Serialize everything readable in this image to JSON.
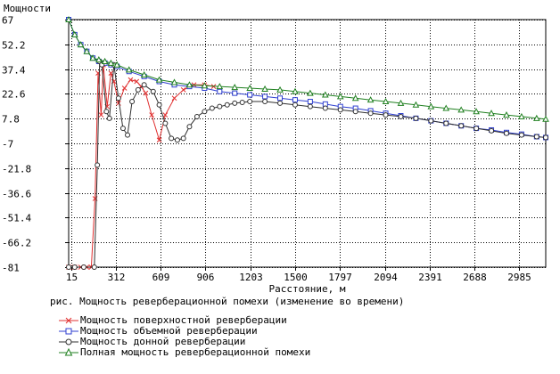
{
  "chart_data": {
    "type": "line",
    "ylabel": "Мощности",
    "xlabel": "Расстояние, м",
    "caption": "рис. Мощность реверберационной помехи (изменение во времени)",
    "xlim": [
      0,
      3160
    ],
    "ylim": [
      -81,
      67
    ],
    "x_ticks": [
      15,
      312,
      609,
      906,
      1203,
      1500,
      1797,
      2094,
      2391,
      2688,
      2985
    ],
    "y_ticks": [
      67,
      52.2,
      37.4,
      22.6,
      7.8,
      -7,
      -21.8,
      -36.6,
      -51.4,
      -66.2,
      -81
    ],
    "grid": true,
    "series": [
      {
        "name": "Мощность поверхностной реверберации",
        "color": "#e03030",
        "marker": "x",
        "x": [
          0,
          40,
          80,
          120,
          150,
          175,
          195,
          215,
          230,
          255,
          280,
          300,
          330,
          370,
          410,
          450,
          480,
          510,
          550,
          600,
          640,
          700,
          760,
          830,
          900,
          960
        ],
        "y": [
          -81,
          -81,
          -81,
          -81,
          -81,
          -40,
          35,
          10,
          40,
          15,
          35,
          30,
          17,
          26,
          31,
          30,
          27,
          23,
          10,
          -5,
          10,
          20,
          25,
          28,
          28,
          27
        ]
      },
      {
        "name": "Мощность объемной реверберации",
        "color": "#3040d0",
        "marker": "square",
        "x": [
          0,
          40,
          80,
          120,
          160,
          200,
          240,
          280,
          320,
          400,
          500,
          600,
          700,
          800,
          900,
          1000,
          1100,
          1200,
          1300,
          1400,
          1500,
          1600,
          1700,
          1800,
          1900,
          2000,
          2100,
          2200,
          2300,
          2400,
          2500,
          2600,
          2700,
          2800,
          2900,
          3000,
          3100,
          3160
        ],
        "y": [
          67,
          58,
          52,
          48,
          44,
          42,
          41,
          40,
          39,
          36,
          33,
          30,
          28,
          27,
          26,
          24,
          23,
          22,
          21,
          20,
          19,
          18,
          16.5,
          15,
          14,
          12.5,
          11,
          9.5,
          8,
          6.5,
          5,
          3.5,
          2,
          1,
          -0.5,
          -1.5,
          -3,
          -3.5
        ]
      },
      {
        "name": "Мощность донной реверберации",
        "color": "#303030",
        "marker": "circle",
        "x": [
          0,
          40,
          100,
          170,
          190,
          205,
          220,
          250,
          270,
          300,
          330,
          360,
          390,
          420,
          460,
          500,
          560,
          600,
          640,
          680,
          720,
          760,
          800,
          850,
          900,
          950,
          1000,
          1050,
          1100,
          1150,
          1200,
          1300,
          1400,
          1500,
          1600,
          1700,
          1800,
          1900,
          2000,
          2100,
          2200,
          2300,
          2400,
          2500,
          2600,
          2700,
          2800,
          2900,
          3000,
          3100,
          3160
        ],
        "y": [
          -81,
          -81,
          -81,
          -81,
          -20,
          42,
          40,
          12,
          8,
          40,
          20,
          2,
          -2,
          18,
          25,
          28,
          24,
          16,
          5,
          -4,
          -5,
          -4,
          3,
          9,
          12,
          14,
          15,
          16,
          17,
          17.5,
          18,
          18,
          17,
          16,
          15,
          14,
          13,
          12,
          11,
          10,
          9,
          8,
          6.5,
          5,
          3.5,
          2,
          0.5,
          -1,
          -2,
          -3,
          -3.5
        ]
      },
      {
        "name": "Полная мощность реверберационной помехи",
        "color": "#208020",
        "marker": "triangle",
        "x": [
          0,
          40,
          80,
          120,
          160,
          200,
          240,
          280,
          320,
          400,
          500,
          600,
          700,
          800,
          900,
          1000,
          1100,
          1200,
          1300,
          1400,
          1500,
          1600,
          1700,
          1800,
          1900,
          2000,
          2100,
          2200,
          2300,
          2400,
          2500,
          2600,
          2700,
          2800,
          2900,
          3000,
          3100,
          3160
        ],
        "y": [
          67,
          58,
          52,
          48,
          44,
          43,
          42,
          41,
          40,
          37,
          34,
          31,
          29.5,
          28,
          27.5,
          27,
          26.5,
          26,
          25.5,
          25,
          24,
          23,
          22,
          21,
          20,
          19,
          18,
          17,
          16,
          15,
          14,
          13,
          12,
          11,
          10,
          9,
          8,
          7.5
        ]
      }
    ]
  }
}
